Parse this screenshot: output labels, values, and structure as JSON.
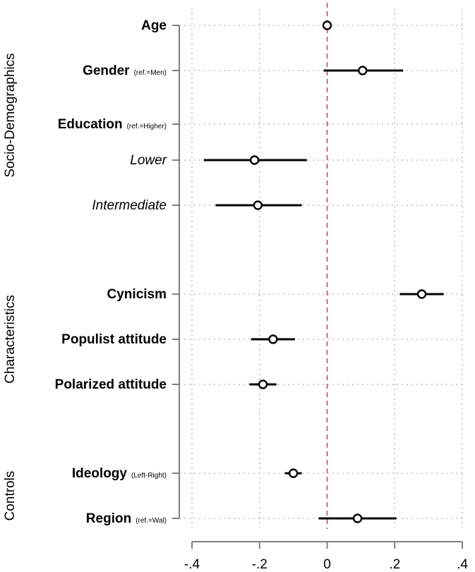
{
  "chart_data": {
    "type": "coefficient-plot",
    "title": "",
    "xlabel": "",
    "ylabel": "",
    "xlim": [
      -0.4,
      0.4
    ],
    "reference_line": 0,
    "x_ticks": [
      {
        "value": -0.4,
        "label": "-.4"
      },
      {
        "value": -0.2,
        "label": "-.2"
      },
      {
        "value": 0,
        "label": "0"
      },
      {
        "value": 0.2,
        "label": ".2"
      },
      {
        "value": 0.4,
        "label": ".4"
      }
    ],
    "groups": [
      {
        "name": "Socio-Demographics",
        "from": "age",
        "to": "intermediate"
      },
      {
        "name": "Characteristics",
        "from": "cynicism",
        "to": "polarized"
      },
      {
        "name": "Controls",
        "from": "ideology",
        "to": "region"
      }
    ],
    "rows": [
      {
        "id": "age",
        "label": "Age",
        "note": "",
        "style": "main",
        "estimate": 0.0,
        "ci": [
          0.0,
          0.0
        ]
      },
      {
        "id": "gender",
        "label": "Gender",
        "note": "(ref.=Men)",
        "style": "main",
        "estimate": 0.105,
        "ci": [
          -0.01,
          0.225
        ]
      },
      {
        "id": "education",
        "label": "Education",
        "note": "(ref.=Higher)",
        "style": "main",
        "estimate": null,
        "ci": null
      },
      {
        "id": "lower",
        "label": "Lower",
        "note": "",
        "style": "sub",
        "estimate": -0.215,
        "ci": [
          -0.365,
          -0.06
        ]
      },
      {
        "id": "intermediate",
        "label": "Intermediate",
        "note": "",
        "style": "sub",
        "estimate": -0.205,
        "ci": [
          -0.33,
          -0.075
        ]
      },
      {
        "id": "cynicism",
        "label": "Cynicism",
        "note": "",
        "style": "main",
        "estimate": 0.28,
        "ci": [
          0.215,
          0.345
        ]
      },
      {
        "id": "populist",
        "label": "Populist attitude",
        "note": "",
        "style": "main",
        "estimate": -0.16,
        "ci": [
          -0.225,
          -0.095
        ]
      },
      {
        "id": "polarized",
        "label": "Polarized attitude",
        "note": "",
        "style": "main",
        "estimate": -0.19,
        "ci": [
          -0.23,
          -0.15
        ]
      },
      {
        "id": "ideology",
        "label": "Ideology",
        "note": "(Left-Right)",
        "style": "main",
        "estimate": -0.1,
        "ci": [
          -0.125,
          -0.075
        ]
      },
      {
        "id": "region",
        "label": "Region",
        "note": "(ref.=Wal)",
        "style": "main",
        "estimate": 0.09,
        "ci": [
          -0.025,
          0.205
        ]
      }
    ]
  },
  "colors": {
    "marker_stroke": "#000000",
    "ci_line": "#000000",
    "reference_line": "#c0587e",
    "grid": "#bdbdbd",
    "axis": "#808080"
  }
}
